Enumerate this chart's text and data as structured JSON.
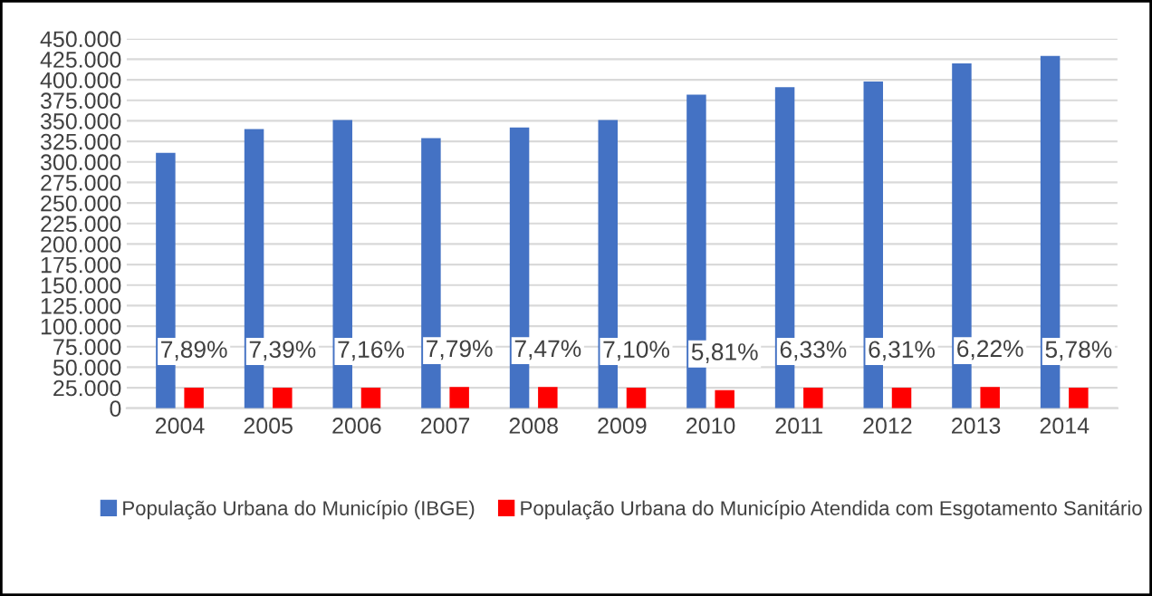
{
  "chart_data": {
    "type": "bar",
    "categories": [
      "2004",
      "2005",
      "2006",
      "2007",
      "2008",
      "2009",
      "2010",
      "2011",
      "2012",
      "2013",
      "2014"
    ],
    "series": [
      {
        "name": "População Urbana do Município (IBGE)",
        "color": "#4472c4",
        "values": [
          311000,
          340000,
          351000,
          329000,
          342000,
          351000,
          382000,
          391000,
          398000,
          420000,
          429000
        ]
      },
      {
        "name": "População Urbana do Município Atendida com Esgotamento Sanitário",
        "color": "#ff0000",
        "values": [
          25000,
          25000,
          25000,
          26000,
          26000,
          25000,
          22000,
          25000,
          25000,
          26000,
          25000
        ]
      }
    ],
    "annotations": [
      {
        "text": "7,89%",
        "x": "2004",
        "y": 25000
      },
      {
        "text": "7,39%",
        "x": "2005",
        "y": 25000
      },
      {
        "text": "7,16%",
        "x": "2006",
        "y": 25000
      },
      {
        "text": "7,79%",
        "x": "2007",
        "y": 26000
      },
      {
        "text": "7,47%",
        "x": "2008",
        "y": 26000
      },
      {
        "text": "7,10%",
        "x": "2009",
        "y": 25000
      },
      {
        "text": "5,81%",
        "x": "2010",
        "y": 22000
      },
      {
        "text": "6,33%",
        "x": "2011",
        "y": 25000
      },
      {
        "text": "6,31%",
        "x": "2012",
        "y": 25000
      },
      {
        "text": "6,22%",
        "x": "2013",
        "y": 26000
      },
      {
        "text": "5,78%",
        "x": "2014",
        "y": 25000
      }
    ],
    "ylim": [
      0,
      450000
    ],
    "yticks": [
      {
        "value": 0,
        "label": "0"
      },
      {
        "value": 25000,
        "label": "25.000"
      },
      {
        "value": 50000,
        "label": "50.000"
      },
      {
        "value": 75000,
        "label": "75.000"
      },
      {
        "value": 100000,
        "label": "100.000"
      },
      {
        "value": 125000,
        "label": "125.000"
      },
      {
        "value": 150000,
        "label": "150.000"
      },
      {
        "value": 175000,
        "label": "175.000"
      },
      {
        "value": 200000,
        "label": "200.000"
      },
      {
        "value": 225000,
        "label": "225.000"
      },
      {
        "value": 250000,
        "label": "250.000"
      },
      {
        "value": 275000,
        "label": "275.000"
      },
      {
        "value": 300000,
        "label": "300.000"
      },
      {
        "value": 325000,
        "label": "325.000"
      },
      {
        "value": 350000,
        "label": "350.000"
      },
      {
        "value": 375000,
        "label": "375.000"
      },
      {
        "value": 400000,
        "label": "400.000"
      },
      {
        "value": 425000,
        "label": "425.000"
      },
      {
        "value": 450000,
        "label": "450.000"
      }
    ],
    "grid": "y",
    "legend": "bottom"
  }
}
